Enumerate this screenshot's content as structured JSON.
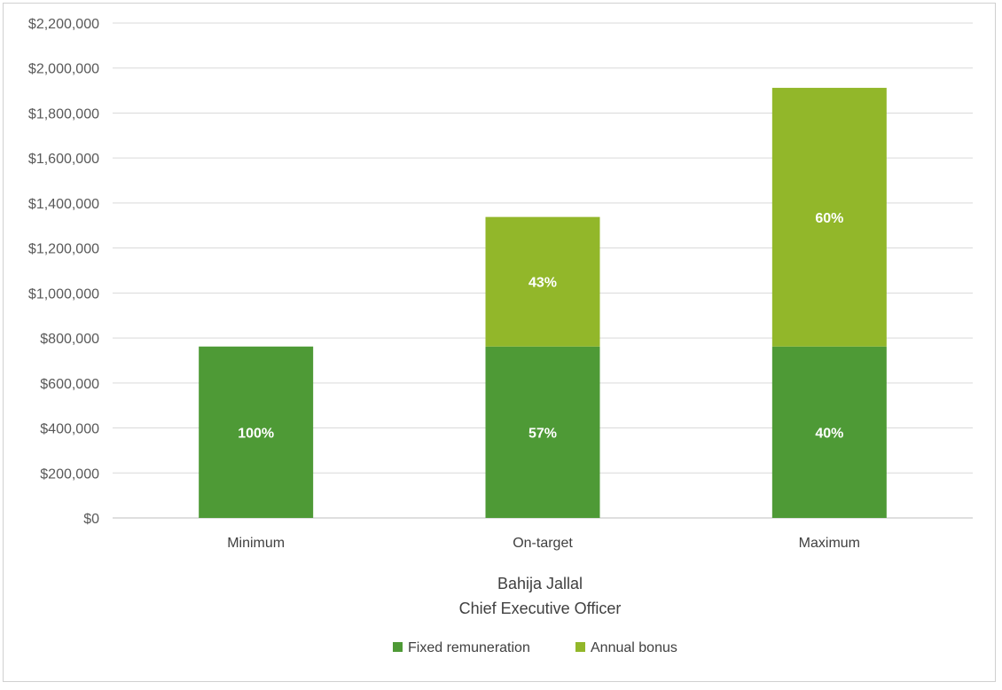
{
  "chart_data": {
    "type": "bar",
    "stacked": true,
    "categories": [
      "Minimum",
      "On-target",
      "Maximum"
    ],
    "series": [
      {
        "name": "Fixed remuneration",
        "color": "#4e9a36",
        "values": [
          762000,
          762000,
          762000
        ],
        "labels": [
          "100%",
          "57%",
          "40%"
        ]
      },
      {
        "name": "Annual bonus",
        "color": "#92b72a",
        "values": [
          0,
          576000,
          1150000
        ],
        "labels": [
          "",
          "43%",
          "60%"
        ]
      }
    ],
    "xlabel_lines": [
      "Bahija Jallal",
      "Chief Executive Officer"
    ],
    "ylim": [
      0,
      2200000
    ],
    "yticks": [
      0,
      200000,
      400000,
      600000,
      800000,
      1000000,
      1200000,
      1400000,
      1600000,
      1800000,
      2000000,
      2200000
    ],
    "ytick_labels": [
      "$0",
      "$200,000",
      "$400,000",
      "$600,000",
      "$800,000",
      "$1,000,000",
      "$1,200,000",
      "$1,400,000",
      "$1,600,000",
      "$1,800,000",
      "$2,000,000",
      "$2,200,000"
    ],
    "grid": true,
    "legend_position": "bottom"
  }
}
